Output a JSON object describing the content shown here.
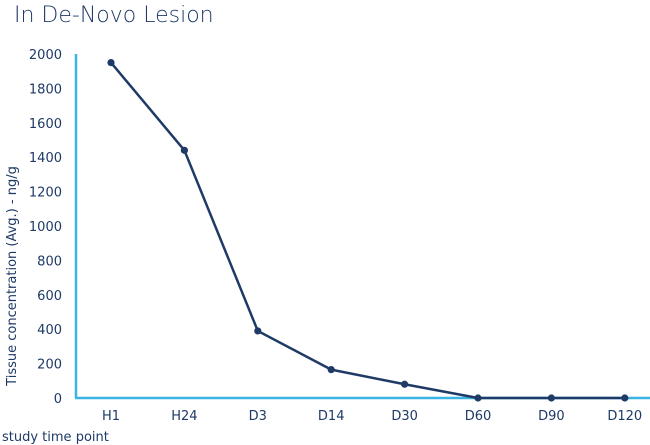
{
  "chart_data": {
    "type": "line",
    "title": "In De-Novo Lesion",
    "xlabel": "study time point",
    "ylabel": "Tissue concentration (Avg.) - ng/g",
    "categories": [
      "H1",
      "H24",
      "D3",
      "D14",
      "D30",
      "D60",
      "D90",
      "D120"
    ],
    "series": [
      {
        "values": [
          1950,
          1440,
          390,
          165,
          80,
          0,
          0,
          0
        ]
      }
    ],
    "ylim": [
      0,
      2000
    ],
    "yticks": [
      "0",
      "200",
      "400",
      "600",
      "800",
      "1000",
      "1200",
      "1400",
      "1600",
      "1800",
      "2000"
    ],
    "grid": false,
    "colors": {
      "line": "#1e3a66",
      "axis": "#3bb4e5",
      "text": "#1e3a66"
    }
  }
}
